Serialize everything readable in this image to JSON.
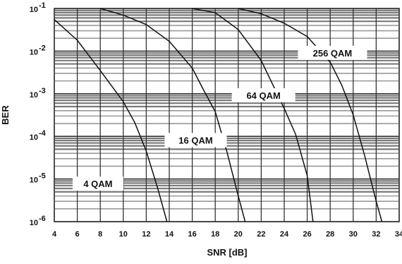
{
  "chart_data": {
    "type": "line",
    "title": "",
    "xlabel": "SNR [dB]",
    "ylabel": "BER",
    "xlim": [
      4,
      34
    ],
    "ylim": [
      1e-06,
      0.1
    ],
    "y_scale": "log",
    "grid": true,
    "legend": "none",
    "x_ticks": [
      "4",
      "6",
      "8",
      "10",
      "12",
      "14",
      "16",
      "18",
      "20",
      "22",
      "24",
      "26",
      "28",
      "30",
      "32",
      "34"
    ],
    "y_tick_bases": [
      "10",
      "10",
      "10",
      "10",
      "10",
      "10"
    ],
    "y_tick_exponents": [
      "-1",
      "-2",
      "-3",
      "-4",
      "-5",
      "-6"
    ],
    "series": [
      {
        "name": "4 QAM",
        "x": [
          4.0,
          6.0,
          8.0,
          10.0,
          11.0,
          12.0,
          13.0,
          13.8
        ],
        "y": [
          0.055,
          0.018,
          0.0035,
          0.00065,
          0.00021,
          4.5e-05,
          6e-06,
          1e-06
        ]
      },
      {
        "name": "16 QAM",
        "x": [
          8.0,
          10.0,
          12.0,
          14.0,
          16.0,
          17.0,
          18.0,
          19.0,
          20.0,
          20.6
        ],
        "y": [
          0.1,
          0.07,
          0.042,
          0.017,
          0.004,
          0.0012,
          0.00038,
          4.5e-05,
          4e-06,
          1e-06
        ]
      },
      {
        "name": "64 QAM",
        "x": [
          16.0,
          18.0,
          20.0,
          22.0,
          24.0,
          25.0,
          26.0,
          26.5
        ],
        "y": [
          0.1,
          0.08,
          0.032,
          0.006,
          0.00045,
          0.00011,
          1.2e-05,
          1e-06
        ]
      },
      {
        "name": "256 QAM",
        "x": [
          20.0,
          22.0,
          24.0,
          26.0,
          28.0,
          29.0,
          30.0,
          31.0,
          32.0,
          32.5
        ],
        "y": [
          0.1,
          0.075,
          0.045,
          0.022,
          0.0055,
          0.0016,
          0.00032,
          3.5e-05,
          3e-06,
          1e-06
        ]
      }
    ],
    "annotations": [
      {
        "text": "4 QAM",
        "series": "4 QAM"
      },
      {
        "text": "16 QAM",
        "series": "16 QAM"
      },
      {
        "text": "64 QAM",
        "series": "64 QAM"
      },
      {
        "text": "256 QAM",
        "series": "256 QAM"
      }
    ]
  }
}
